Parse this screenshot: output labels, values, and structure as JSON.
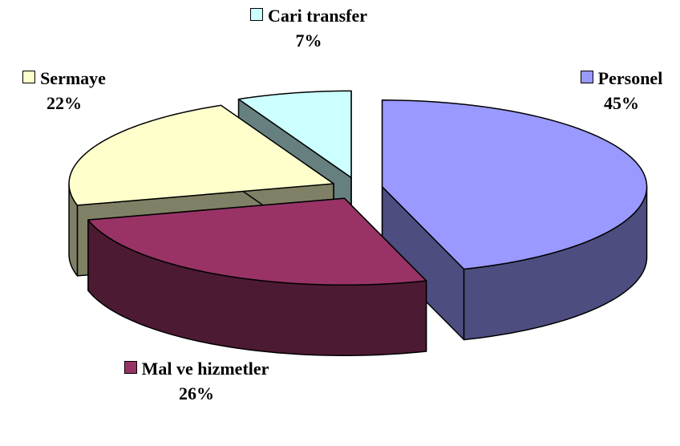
{
  "chart_data": {
    "type": "pie3d",
    "categories": [
      "Personel",
      "Mal ve hizmetler",
      "Sermaye",
      "Cari transfer"
    ],
    "values": [
      45,
      26,
      22,
      7
    ],
    "value_labels": [
      "45%",
      "26%",
      "22%",
      "7%"
    ],
    "colors": [
      "#9999ff",
      "#993366",
      "#ffffcc",
      "#ccffff"
    ]
  }
}
